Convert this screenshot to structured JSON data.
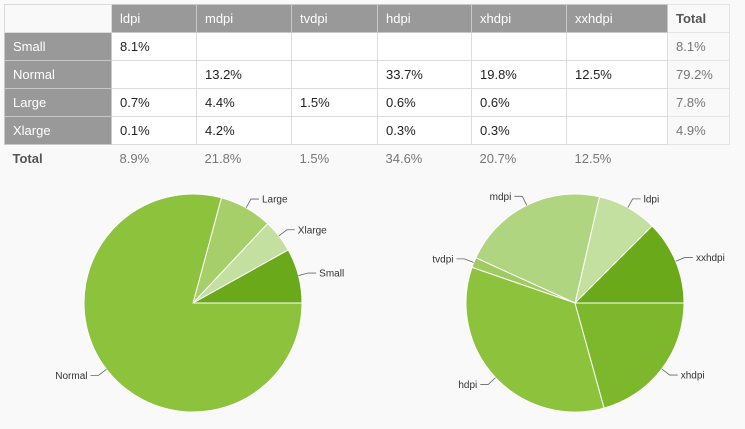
{
  "table": {
    "columns": [
      "ldpi",
      "mdpi",
      "tvdpi",
      "hdpi",
      "xhdpi",
      "xxhdpi",
      "Total"
    ],
    "rows": [
      {
        "label": "Small",
        "cells": [
          "8.1%",
          "",
          "",
          "",
          "",
          "",
          "8.1%"
        ]
      },
      {
        "label": "Normal",
        "cells": [
          "",
          "13.2%",
          "",
          "33.7%",
          "19.8%",
          "12.5%",
          "79.2%"
        ]
      },
      {
        "label": "Large",
        "cells": [
          "0.7%",
          "4.4%",
          "1.5%",
          "0.6%",
          "0.6%",
          "",
          "7.8%"
        ]
      },
      {
        "label": "Xlarge",
        "cells": [
          "0.1%",
          "4.2%",
          "",
          "0.3%",
          "0.3%",
          "",
          "4.9%"
        ]
      }
    ],
    "total_row": {
      "label": "Total",
      "cells": [
        "8.9%",
        "21.8%",
        "1.5%",
        "34.6%",
        "20.7%",
        "12.5%",
        ""
      ]
    }
  },
  "colors": {
    "header_bg": "#999999",
    "pie_dark": "#6aaa1a",
    "pie_main": "#8bbf3a",
    "pie_mid": "#a8d06c",
    "pie_light": "#c4e0a0"
  },
  "chart_data": [
    {
      "type": "pie",
      "title": "",
      "slices": [
        {
          "label": "Small",
          "value": 8.1,
          "color": "#6aaa1a"
        },
        {
          "label": "Xlarge",
          "value": 4.9,
          "color": "#c4e0a0"
        },
        {
          "label": "Large",
          "value": 7.8,
          "color": "#a6cf6a"
        },
        {
          "label": "Normal",
          "value": 79.2,
          "color": "#8cc23c"
        }
      ]
    },
    {
      "type": "pie",
      "title": "",
      "slices": [
        {
          "label": "xxhdpi",
          "value": 12.5,
          "color": "#6aaa1a"
        },
        {
          "label": "ldpi",
          "value": 8.9,
          "color": "#c4e0a0"
        },
        {
          "label": "mdpi",
          "value": 21.8,
          "color": "#b0d580"
        },
        {
          "label": "tvdpi",
          "value": 1.5,
          "color": "#a0cb60"
        },
        {
          "label": "hdpi",
          "value": 34.6,
          "color": "#8cc23c"
        },
        {
          "label": "xhdpi",
          "value": 20.7,
          "color": "#7db82c"
        }
      ]
    }
  ]
}
